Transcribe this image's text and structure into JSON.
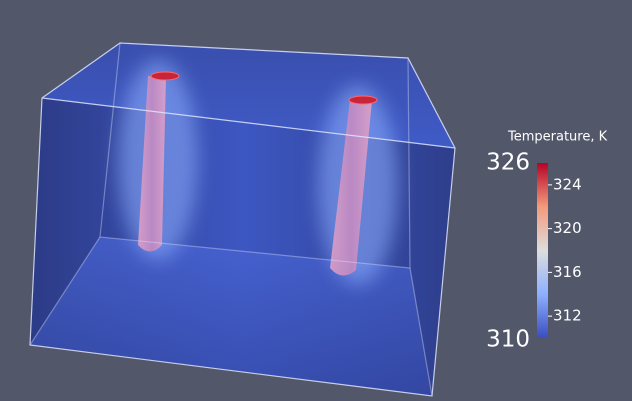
{
  "colorbar": {
    "title": "Temperature, K",
    "range": [
      310,
      326
    ],
    "ticks": [
      312,
      316,
      320,
      324
    ]
  }
}
